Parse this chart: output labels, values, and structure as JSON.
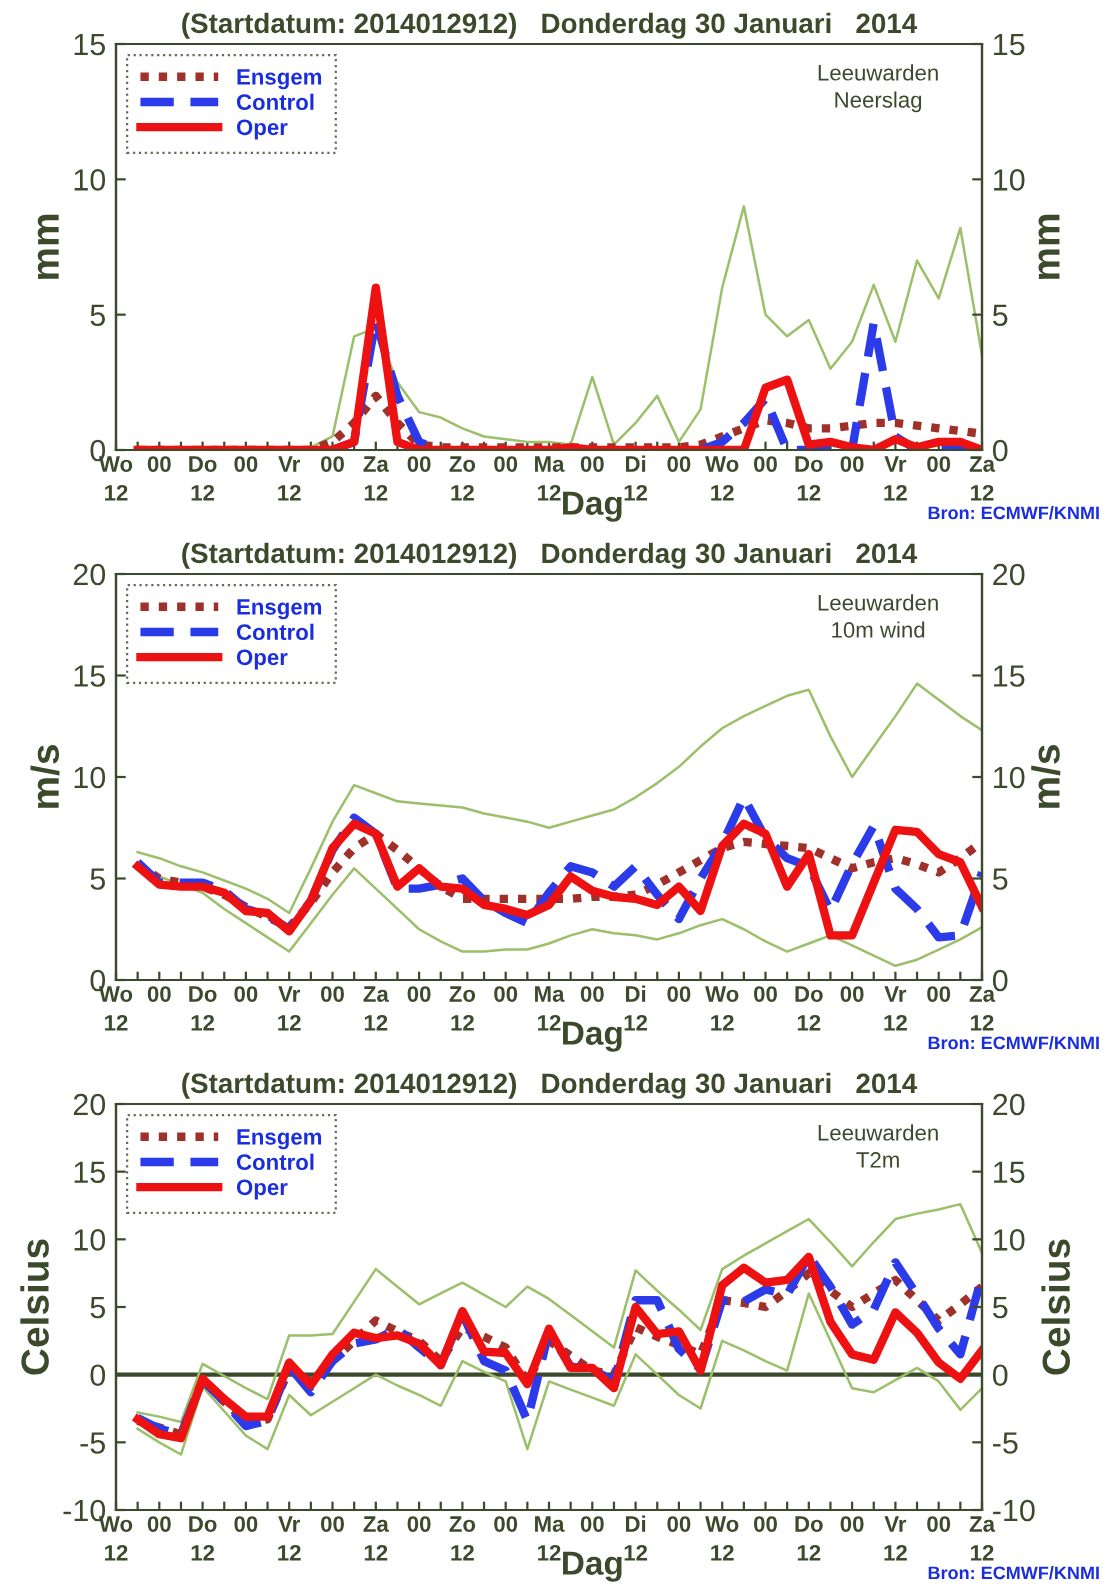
{
  "chart_data": [
    {
      "type": "line",
      "title": "(Startdatum: 2014012912)   Donderdag 30 Januari   2014",
      "xlabel": "Dag",
      "ylabel": "mm",
      "y2label": "mm",
      "annotations": [
        "Leeuwarden\nNeerslag",
        "Bron: ECMWF/KNMI"
      ],
      "categories": [
        "Wo\n12",
        null,
        "00",
        null,
        "Do\n12",
        null,
        "00",
        null,
        "Vr\n12",
        null,
        "00",
        null,
        "Za\n12",
        null,
        "00",
        null,
        "Zo\n12",
        null,
        "00",
        null,
        "Ma\n12",
        null,
        "00",
        null,
        "Di\n12",
        null,
        "00",
        null,
        "Wo\n12",
        null,
        "00",
        null,
        "Do\n12",
        null,
        "00",
        null,
        "Vr\n12",
        null,
        "00",
        null,
        "Za\n12"
      ],
      "ylim": [
        0,
        15
      ],
      "yticks": [
        0,
        5,
        10,
        15
      ],
      "y2lim": [
        0,
        15
      ],
      "y2ticks": [
        0,
        5,
        10,
        15
      ],
      "grid": false,
      "legend": "top left",
      "marker": "none",
      "series": [
        {
          "color": "#9cbf6a",
          "line_style": "solid",
          "values": [
            null,
            null,
            null,
            null,
            null,
            null,
            null,
            0,
            0,
            0.1,
            0.5,
            4.2,
            4.5,
            2.5,
            1.4,
            1.2,
            0.8,
            0.5,
            0.4,
            0.3,
            0.3,
            0.2,
            2.7,
            0.2,
            1.0,
            2.0,
            0.3,
            1.5,
            6.0,
            9.0,
            5.0,
            4.2,
            4.8,
            3.0,
            4.0,
            6.1,
            4.0,
            7.0,
            5.6,
            8.2,
            3.5
          ]
        },
        {
          "name": "Ensgem",
          "color": "#a0302a",
          "line_style": "dotted",
          "values": [
            null,
            0,
            0,
            0,
            0,
            0,
            0,
            0,
            0,
            0,
            0.3,
            1.0,
            2.0,
            1.0,
            0.2,
            0.1,
            0.1,
            0.1,
            0.1,
            0.1,
            0.1,
            0.1,
            0.1,
            0.1,
            0.1,
            0.1,
            0.1,
            0.2,
            0.5,
            0.8,
            1.1,
            1.0,
            0.8,
            0.8,
            0.9,
            1.0,
            1.0,
            0.9,
            0.8,
            0.7,
            0.6
          ]
        },
        {
          "name": "Control",
          "color": "#2b3bea",
          "line_style": "dashed",
          "values": [
            null,
            null,
            null,
            null,
            null,
            null,
            null,
            null,
            null,
            null,
            0,
            0.3,
            4.8,
            2.0,
            0.3,
            0,
            null,
            null,
            null,
            null,
            null,
            null,
            null,
            null,
            null,
            null,
            null,
            0,
            0.3,
            1.0,
            1.9,
            0,
            0,
            0,
            0,
            4.7,
            0.5,
            0,
            0,
            0,
            0
          ]
        },
        {
          "name": "Oper",
          "color": "#ee1111",
          "line_style": "solid",
          "values": [
            null,
            0,
            0,
            0,
            0,
            0,
            0,
            0,
            0,
            0,
            0,
            0.3,
            6.0,
            0.3,
            0,
            0,
            0,
            0,
            0,
            0,
            0,
            0.1,
            0,
            0,
            0,
            0,
            0,
            0,
            0,
            0,
            2.3,
            2.6,
            0.2,
            0.3,
            0.1,
            0,
            0.4,
            0.1,
            0.3,
            0.3,
            0
          ]
        }
      ]
    },
    {
      "type": "line",
      "title": "(Startdatum: 2014012912)   Donderdag 30 Januari   2014",
      "xlabel": "Dag",
      "ylabel": "m/s",
      "y2label": "m/s",
      "annotations": [
        "Leeuwarden\n10m wind",
        "Bron: ECMWF/KNMI"
      ],
      "categories": [
        "Wo\n12",
        null,
        "00",
        null,
        "Do\n12",
        null,
        "00",
        null,
        "Vr\n12",
        null,
        "00",
        null,
        "Za\n12",
        null,
        "00",
        null,
        "Zo\n12",
        null,
        "00",
        null,
        "Ma\n12",
        null,
        "00",
        null,
        "Di\n12",
        null,
        "00",
        null,
        "Wo\n12",
        null,
        "00",
        null,
        "Do\n12",
        null,
        "00",
        null,
        "Vr\n12",
        null,
        "00",
        null,
        "Za\n12"
      ],
      "ylim": [
        0,
        20
      ],
      "yticks": [
        0,
        5,
        10,
        15,
        20
      ],
      "y2lim": [
        0,
        20
      ],
      "y2ticks": [
        0,
        5,
        10,
        15,
        20
      ],
      "grid": false,
      "legend": "top left",
      "marker": "none",
      "series": [
        {
          "color": "#9cbf6a",
          "line_style": "solid",
          "values": [
            null,
            6.3,
            6.0,
            5.6,
            5.3,
            4.9,
            4.5,
            4.0,
            3.3,
            5.5,
            7.8,
            9.6,
            9.2,
            8.8,
            8.7,
            8.6,
            8.5,
            8.2,
            8.0,
            7.8,
            7.5,
            7.8,
            8.1,
            8.4,
            9.0,
            9.7,
            10.5,
            11.5,
            12.4,
            13.0,
            13.5,
            14.0,
            14.3,
            12.0,
            10.0,
            11.5,
            13.0,
            14.6,
            13.8,
            13.0,
            12.3
          ]
        },
        {
          "color": "#9cbf6a",
          "line_style": "solid",
          "values": [
            null,
            5.5,
            5.1,
            4.7,
            4.3,
            3.5,
            2.8,
            2.1,
            1.4,
            2.8,
            4.2,
            5.5,
            4.5,
            3.5,
            2.5,
            1.9,
            1.4,
            1.4,
            1.5,
            1.5,
            1.8,
            2.2,
            2.5,
            2.3,
            2.2,
            2.0,
            2.3,
            2.7,
            3.0,
            2.5,
            1.9,
            1.4,
            1.8,
            2.2,
            1.7,
            1.2,
            0.7,
            1.0,
            1.5,
            2.0,
            2.6
          ]
        },
        {
          "name": "Ensgem",
          "color": "#a0302a",
          "line_style": "dotted",
          "values": [
            null,
            5.7,
            5.0,
            4.8,
            4.6,
            4.2,
            3.6,
            3.1,
            2.6,
            3.8,
            5.3,
            6.5,
            7.2,
            6.4,
            5.5,
            4.6,
            4.0,
            4.0,
            4.0,
            4.0,
            4.0,
            4.0,
            4.1,
            4.1,
            4.2,
            4.7,
            5.3,
            5.9,
            6.5,
            6.8,
            6.7,
            6.6,
            6.5,
            6.0,
            5.5,
            5.8,
            6.0,
            5.7,
            5.3,
            6.0,
            6.8
          ]
        },
        {
          "name": "Control",
          "color": "#2b3bea",
          "line_style": "dashed",
          "values": [
            null,
            5.8,
            4.8,
            4.8,
            4.8,
            4.4,
            3.5,
            3.2,
            2.5,
            3.9,
            6.4,
            8.0,
            7.2,
            4.5,
            4.5,
            4.7,
            5.0,
            3.9,
            3.3,
            2.8,
            4.3,
            5.6,
            5.3,
            4.6,
            5.6,
            4.2,
            3.0,
            5.0,
            6.7,
            9.0,
            7.0,
            6.0,
            5.6,
            3.4,
            5.7,
            7.6,
            4.5,
            3.5,
            2.1,
            2.2,
            5.3
          ]
        },
        {
          "name": "Oper",
          "color": "#ee1111",
          "line_style": "solid",
          "values": [
            null,
            5.6,
            4.7,
            4.6,
            4.6,
            4.3,
            3.4,
            3.3,
            2.4,
            3.9,
            6.5,
            7.7,
            7.2,
            4.6,
            5.5,
            4.6,
            4.5,
            3.7,
            3.5,
            3.2,
            3.7,
            5.1,
            4.4,
            4.1,
            4.0,
            3.7,
            4.6,
            3.4,
            6.6,
            7.7,
            7.2,
            4.6,
            6.2,
            2.2,
            2.2,
            4.8,
            7.4,
            7.3,
            6.2,
            5.8,
            3.6
          ]
        }
      ]
    },
    {
      "type": "line",
      "title": "(Startdatum: 2014012912)   Donderdag 30 Januari   2014",
      "xlabel": "Dag",
      "ylabel": "Celsius",
      "y2label": "Celsius",
      "annotations": [
        "Leeuwarden\nT2m",
        "Bron: ECMWF/KNMI"
      ],
      "categories": [
        "Wo\n12",
        null,
        "00",
        null,
        "Do\n12",
        null,
        "00",
        null,
        "Vr\n12",
        null,
        "00",
        null,
        "Za\n12",
        null,
        "00",
        null,
        "Zo\n12",
        null,
        "00",
        null,
        "Ma\n12",
        null,
        "00",
        null,
        "Di\n12",
        null,
        "00",
        null,
        "Wo\n12",
        null,
        "00",
        null,
        "Do\n12",
        null,
        "00",
        null,
        "Vr\n12",
        null,
        "00",
        null,
        "Za\n12"
      ],
      "ylim": [
        -10,
        20
      ],
      "yticks": [
        -10,
        -5,
        0,
        5,
        10,
        15,
        20
      ],
      "y2lim": [
        -10,
        20
      ],
      "y2ticks": [
        -10,
        -5,
        0,
        5,
        10,
        15,
        20
      ],
      "grid": false,
      "legend": "top left",
      "marker": "none",
      "ref_lines": [
        {
          "axis": "y",
          "value": 0,
          "color": "#3c4a2c"
        }
      ],
      "series": [
        {
          "color": "#9cbf6a",
          "line_style": "solid",
          "values": [
            null,
            -2.8,
            -3.1,
            -3.5,
            0.8,
            -0.1,
            -1.0,
            -1.8,
            2.9,
            2.9,
            3.0,
            5.4,
            7.8,
            6.5,
            5.2,
            6.0,
            6.8,
            5.9,
            5.0,
            6.5,
            5.6,
            4.4,
            3.2,
            2.0,
            7.7,
            6.2,
            4.8,
            3.3,
            7.8,
            8.8,
            9.7,
            10.6,
            11.5,
            9.8,
            8.0,
            9.8,
            11.5,
            11.9,
            12.2,
            12.6,
            9.0
          ]
        },
        {
          "color": "#9cbf6a",
          "line_style": "solid",
          "values": [
            null,
            -4.0,
            -5.0,
            -5.9,
            -0.9,
            -2.7,
            -4.5,
            -5.5,
            -1.5,
            -3.0,
            -2.0,
            -1.0,
            0.0,
            -0.8,
            -1.5,
            -2.3,
            1.0,
            0.2,
            -0.5,
            -5.5,
            -0.5,
            -1.1,
            -1.7,
            -2.3,
            1.5,
            0.0,
            -1.5,
            -2.5,
            2.5,
            1.8,
            1.0,
            0.3,
            6.0,
            2.5,
            -1.0,
            -1.3,
            -0.4,
            0.5,
            -0.5,
            -2.6,
            -1.0
          ]
        },
        {
          "name": "Ensgem",
          "color": "#a0302a",
          "line_style": "dotted",
          "values": [
            null,
            -3.4,
            -3.9,
            -4.4,
            -0.4,
            -2.0,
            -3.5,
            -3.3,
            0.4,
            -0.5,
            1.0,
            2.5,
            4.0,
            3.2,
            2.5,
            1.0,
            3.5,
            2.8,
            2.0,
            -0.5,
            2.5,
            1.4,
            0.3,
            0.0,
            3.5,
            2.8,
            2.2,
            1.5,
            5.5,
            5.3,
            5.0,
            6.2,
            7.5,
            6.2,
            5.0,
            6.0,
            7.0,
            5.5,
            4.0,
            5.2,
            6.5
          ]
        },
        {
          "name": "Control",
          "color": "#2b3bea",
          "line_style": "dashed",
          "values": [
            null,
            -3.2,
            -4.0,
            -4.4,
            -0.4,
            -2.0,
            -3.8,
            -3.4,
            0.6,
            -1.3,
            1.0,
            2.3,
            2.6,
            3.4,
            2.0,
            0.7,
            4.5,
            1.0,
            0.3,
            -3.4,
            3.2,
            0.6,
            0.4,
            -0.5,
            5.5,
            5.5,
            1.9,
            0.4,
            5.5,
            5.4,
            6.3,
            5.9,
            8.8,
            6.5,
            3.7,
            4.8,
            8.3,
            5.9,
            3.4,
            1.5,
            7.3
          ]
        },
        {
          "name": "Oper",
          "color": "#ee1111",
          "line_style": "solid",
          "values": [
            null,
            -3.3,
            -4.4,
            -4.7,
            -0.3,
            -1.8,
            -3.1,
            -3.1,
            0.9,
            -0.8,
            1.5,
            3.1,
            2.7,
            2.9,
            2.3,
            0.7,
            4.7,
            1.7,
            1.6,
            -0.7,
            3.4,
            0.5,
            0.5,
            -1.0,
            5.0,
            3.0,
            3.2,
            0.3,
            6.6,
            7.9,
            6.8,
            7.0,
            8.7,
            3.9,
            1.5,
            1.1,
            4.6,
            3.1,
            0.9,
            -0.3,
            1.8
          ]
        }
      ]
    }
  ]
}
